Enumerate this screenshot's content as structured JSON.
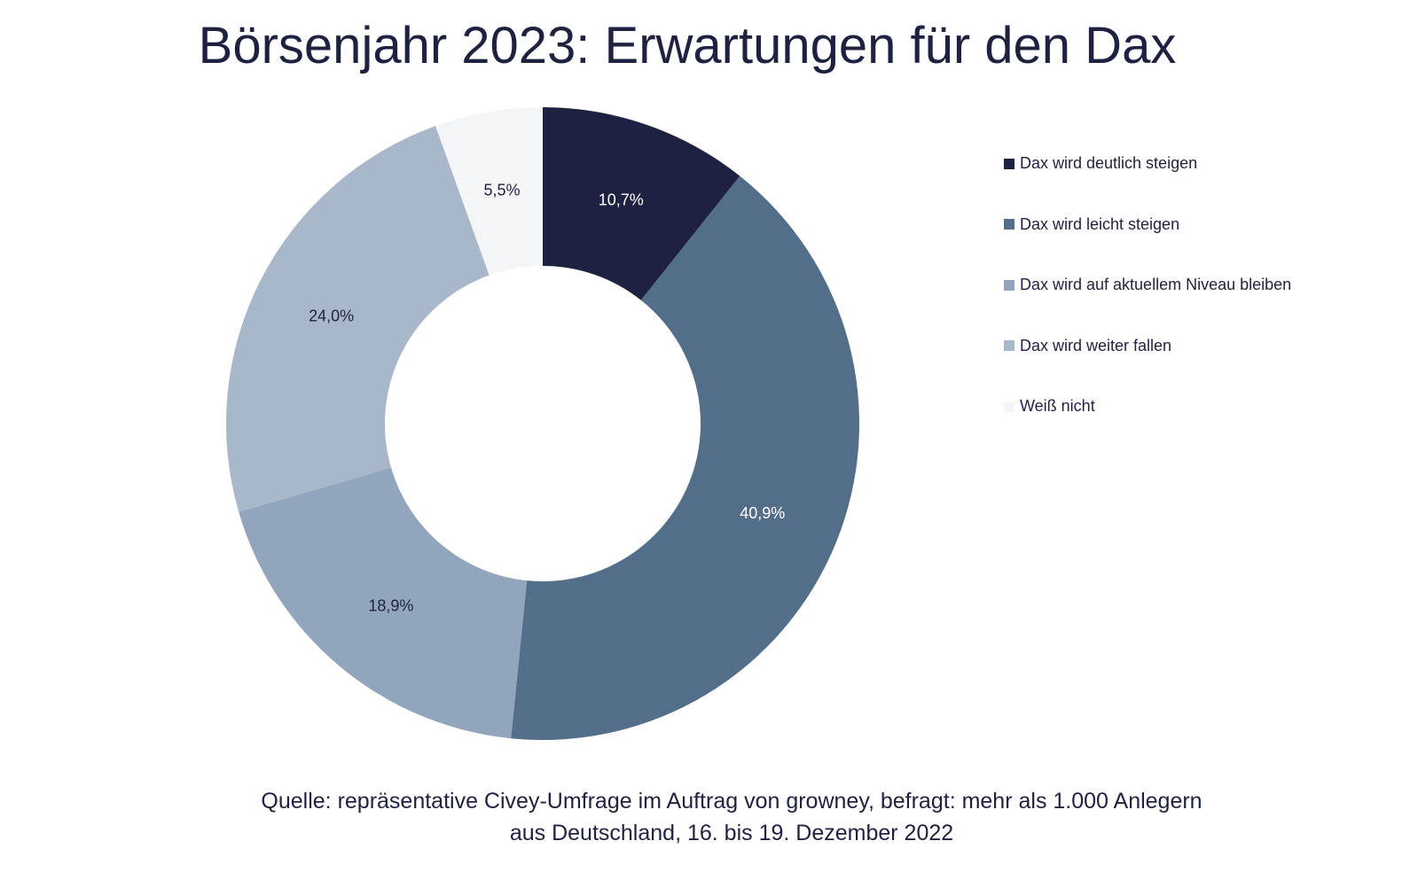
{
  "chart_data": {
    "type": "pie",
    "donut": true,
    "title": "Börsenjahr 2023: Erwartungen für den Dax",
    "categories": [
      "Dax wird deutlich steigen",
      "Dax wird leicht steigen",
      "Dax wird auf aktuellem Niveau bleiben",
      "Dax wird weiter fallen",
      "Weiß nicht"
    ],
    "values": [
      10.7,
      40.9,
      18.9,
      24.0,
      5.5
    ],
    "labels": [
      "10,7%",
      "40,9%",
      "18,9%",
      "24,0%",
      "5,5%"
    ],
    "colors": [
      "#1f2140",
      "#536e89",
      "#91a5bc",
      "#a8b8ca",
      "#f4f5f7"
    ],
    "label_colors": [
      "#ffffff",
      "#ffffff",
      "#1f2140",
      "#1f2140",
      "#1f2140"
    ],
    "legend_position": "right",
    "start": "top, clockwise"
  },
  "source": {
    "line1": "Quelle: repräsentative Civey-Umfrage im Auftrag von growney, befragt: mehr als 1.000 Anlegern",
    "line2": "aus Deutschland, 16. bis 19. Dezember 2022"
  }
}
